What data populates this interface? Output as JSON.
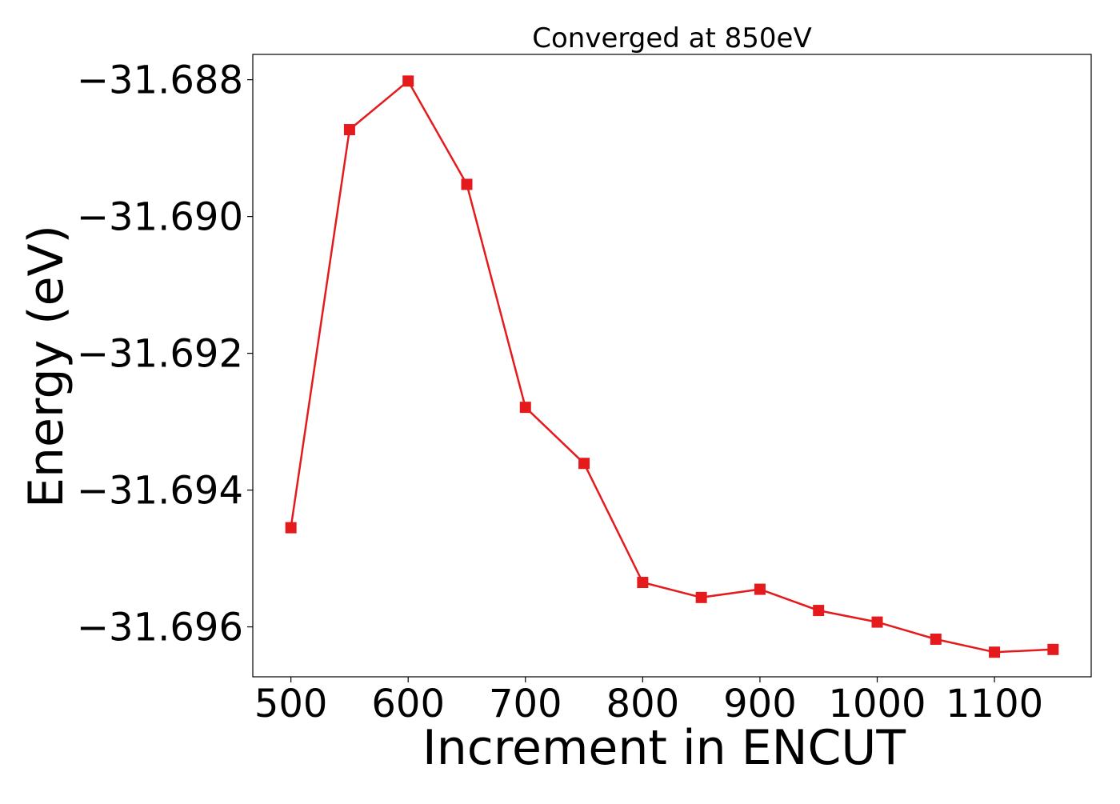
{
  "chart_data": {
    "type": "line",
    "title": "Converged at 850eV",
    "xlabel": "Increment in ENCUT",
    "ylabel": "Energy (eV)",
    "x": [
      500,
      550,
      600,
      650,
      700,
      750,
      800,
      850,
      900,
      950,
      1000,
      1050,
      1100,
      1150
    ],
    "series": [
      {
        "values": [
          -31.69455,
          -31.68873,
          -31.68802,
          -31.68953,
          -31.69279,
          -31.69361,
          -31.69535,
          -31.69557,
          -31.69545,
          -31.69576,
          -31.69593,
          -31.69618,
          -31.69637,
          -31.69633
        ],
        "color": "#e41a1c",
        "marker": "square"
      }
    ],
    "xticks": [
      500,
      600,
      700,
      800,
      900,
      1000,
      1100
    ],
    "xtick_labels": [
      "500",
      "600",
      "700",
      "800",
      "900",
      "1000",
      "1100"
    ],
    "yticks": [
      -31.688,
      -31.69,
      -31.692,
      -31.694,
      -31.696
    ],
    "ytick_labels": [
      "−31.688",
      "−31.690",
      "−31.692",
      "−31.694",
      "−31.696"
    ],
    "xlim": [
      467.5,
      1182.5
    ],
    "ylim": [
      -31.69673,
      -31.68763
    ],
    "grid": false,
    "legend": false
  }
}
